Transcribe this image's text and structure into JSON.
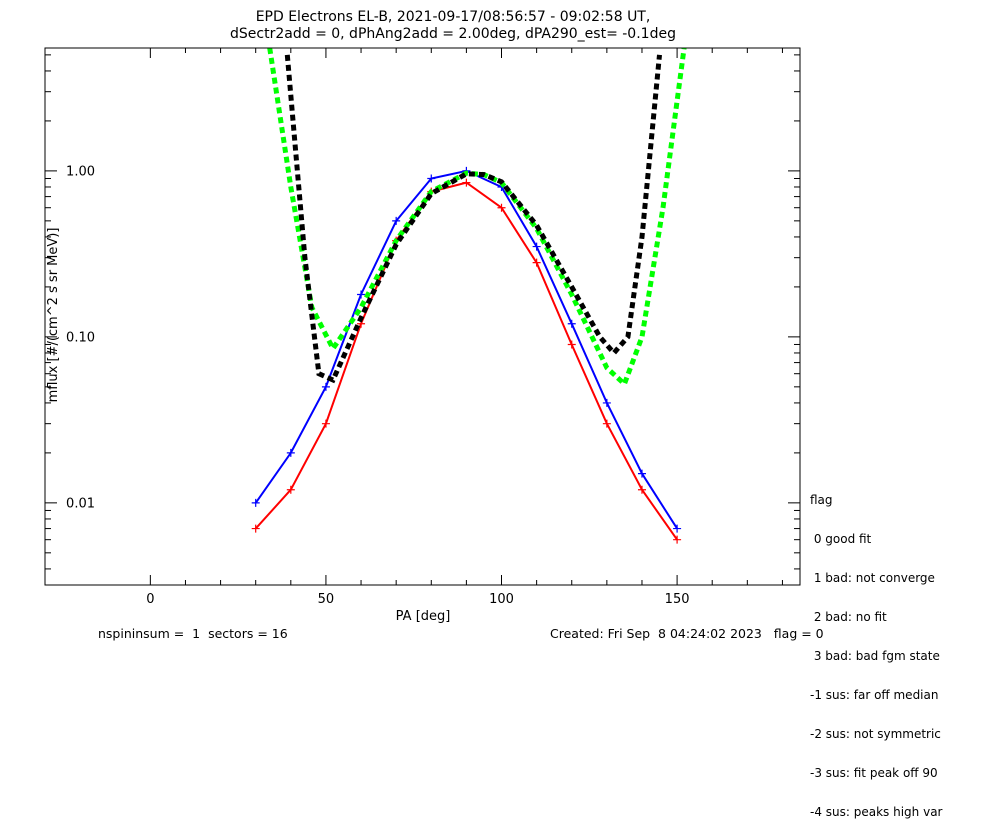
{
  "chart_data": {
    "type": "line",
    "title": "EPD Electrons EL-B, 2021-09-17/08:56:57 - 09:02:58 UT,",
    "subtitle": "dSectr2add = 0, dPhAng2add = 2.00deg, dPA290_est=  -0.1deg",
    "xlabel": "PA [deg]",
    "ylabel": "mflux [#/(cm^2 s sr MeV)]",
    "xlim": [
      -30,
      185
    ],
    "ylim": [
      0.0032,
      5.5
    ],
    "yscale": "log",
    "xticks": [
      0,
      50,
      100,
      150
    ],
    "yticks": [
      0.01,
      0.1,
      1.0
    ],
    "ytick_labels": [
      "0.01",
      "0.10",
      "1.00"
    ],
    "grid": false,
    "series": [
      {
        "color": "#ff0000",
        "x": [
          30,
          40,
          50,
          60,
          70,
          80,
          90,
          100,
          110,
          120,
          130,
          140,
          150
        ],
        "y": [
          0.007,
          0.012,
          0.03,
          0.12,
          0.38,
          0.75,
          0.85,
          0.6,
          0.28,
          0.09,
          0.03,
          0.012,
          0.006
        ]
      },
      {
        "color": "#0000ff",
        "x": [
          30,
          40,
          50,
          60,
          70,
          80,
          90,
          100,
          110,
          120,
          130,
          140,
          150
        ],
        "y": [
          0.01,
          0.02,
          0.05,
          0.18,
          0.5,
          0.9,
          1.0,
          0.8,
          0.35,
          0.12,
          0.04,
          0.015,
          0.007
        ]
      },
      {
        "color": "#00ff00",
        "x": [
          34,
          40,
          46,
          52,
          60,
          70,
          80,
          90,
          95,
          100,
          110,
          120,
          130,
          135,
          140,
          146,
          152
        ],
        "y": [
          5.5,
          0.8,
          0.15,
          0.085,
          0.15,
          0.38,
          0.75,
          0.97,
          0.95,
          0.85,
          0.45,
          0.18,
          0.065,
          0.052,
          0.1,
          0.6,
          5.5
        ]
      },
      {
        "color": "#000000",
        "x": [
          39,
          44,
          48,
          52,
          60,
          70,
          80,
          90,
          95,
          100,
          110,
          120,
          128,
          132,
          136,
          140,
          145
        ],
        "y": [
          5.0,
          0.3,
          0.06,
          0.055,
          0.13,
          0.36,
          0.73,
          0.96,
          0.95,
          0.86,
          0.47,
          0.2,
          0.1,
          0.08,
          0.1,
          0.4,
          5.0
        ]
      }
    ]
  },
  "legend": {
    "title": "flag",
    "items": [
      " 0 good fit",
      " 1 bad: not converge",
      " 2 bad: no fit",
      " 3 bad: bad fgm state",
      "-1 sus: far off median",
      "-2 sus: not symmetric",
      "-3 sus: fit peak off 90",
      "-4 sus: peaks high var"
    ]
  },
  "footer": {
    "left": "nspininsum =  1  sectors = 16",
    "right": "Created: Fri Sep  8 04:24:02 2023   flag = 0"
  }
}
